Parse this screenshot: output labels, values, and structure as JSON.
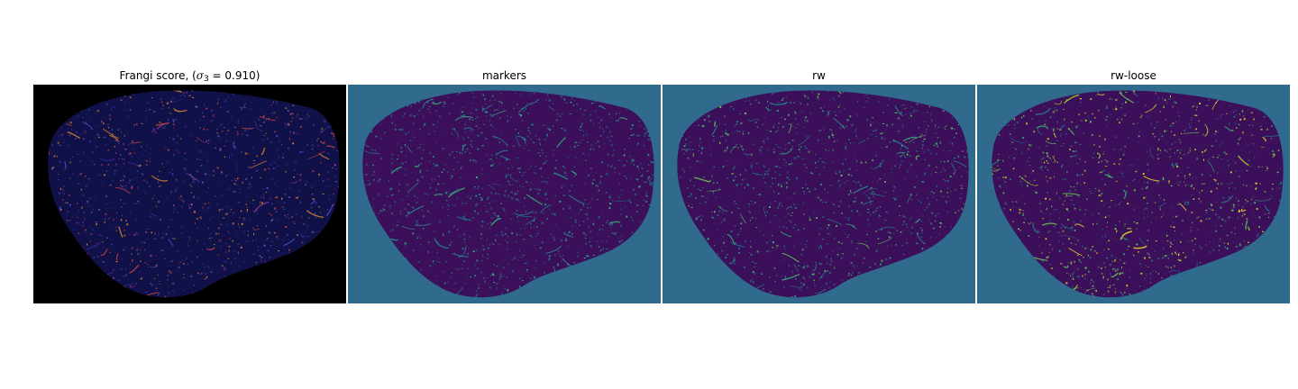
{
  "panels": [
    {
      "id": "frangi",
      "title_prefix": "Frangi score, (",
      "title_symbol": "σ",
      "title_subscript": "3",
      "title_suffix": " = 0.910)",
      "background": "#000000",
      "blob": "#11114a",
      "dots": [
        "#2a2a8c",
        "#5050c8",
        "#8c3c8c",
        "#c04040",
        "#e08a2a"
      ]
    },
    {
      "id": "markers",
      "title": "markers",
      "background": "#306a8c",
      "blob": "#3b0f5a",
      "dots": [
        "#2a7c8c",
        "#22998c",
        "#35b779",
        "#1f6f8b"
      ]
    },
    {
      "id": "rw",
      "title": "rw",
      "background": "#306a8c",
      "blob": "#3b0f5a",
      "dots": [
        "#2a7c8c",
        "#22998c",
        "#35b779",
        "#6ece58",
        "#1f6f8b"
      ]
    },
    {
      "id": "rw-loose",
      "title": "rw-loose",
      "background": "#306a8c",
      "blob": "#3b0f5a",
      "dots": [
        "#2a7c8c",
        "#35b779",
        "#6ece58",
        "#b5de2b",
        "#fde725",
        "#1f6f8b"
      ]
    }
  ]
}
